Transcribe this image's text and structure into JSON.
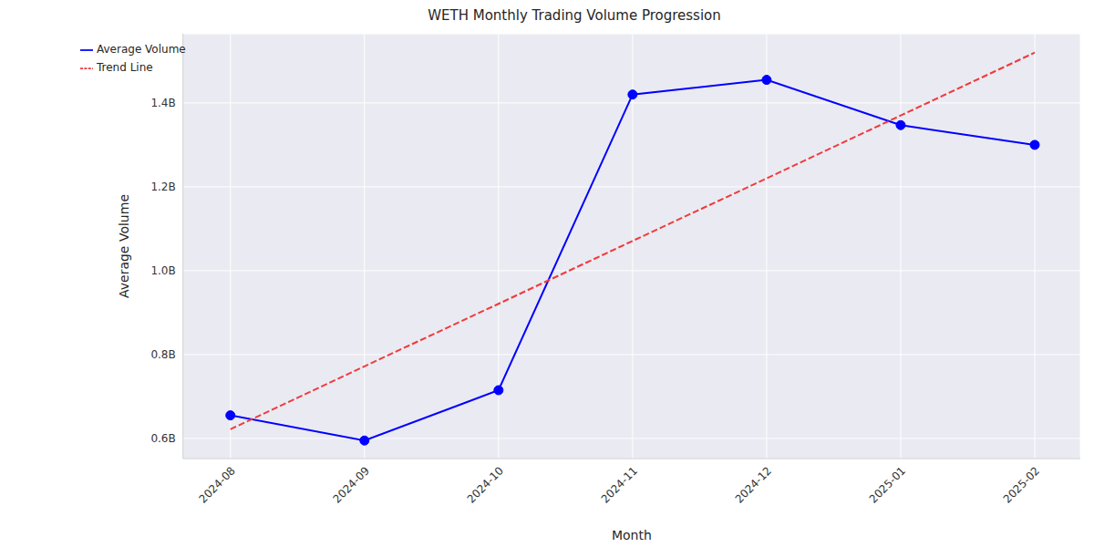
{
  "chart_data": {
    "type": "line",
    "title": "WETH Monthly Trading Volume Progression",
    "x_label": "Month",
    "y_label": "Average Volume",
    "categories": [
      "2024-08",
      "2024-09",
      "2024-10",
      "2024-11",
      "2024-12",
      "2025-01",
      "2025-02"
    ],
    "series": [
      {
        "name": "Average Volume",
        "color": "#0000ff",
        "marker": "circle",
        "line_style": "solid",
        "values": [
          0.655,
          0.595,
          0.715,
          1.42,
          1.455,
          1.347,
          1.3
        ]
      },
      {
        "name": "Trend Line",
        "color": "#ef3b3b",
        "marker": "none",
        "line_style": "dashed",
        "values": [
          0.622,
          0.772,
          0.921,
          1.071,
          1.22,
          1.37,
          1.52
        ]
      }
    ],
    "ylim": [
      0.552,
      1.565
    ],
    "yticks": [
      {
        "value": 0.6,
        "label": "0.6B"
      },
      {
        "value": 0.8,
        "label": "0.8B"
      },
      {
        "value": 1.0,
        "label": "1.0B"
      },
      {
        "value": 1.2,
        "label": "1.2B"
      },
      {
        "value": 1.4,
        "label": "1.4B"
      }
    ],
    "grid": true,
    "legend": "upper left"
  }
}
